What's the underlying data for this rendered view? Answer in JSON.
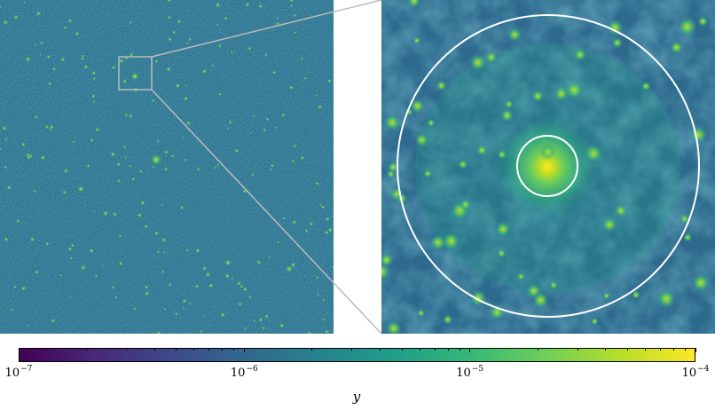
{
  "colormap": {
    "name": "viridis",
    "stops": [
      "#440154",
      "#482878",
      "#3e4989",
      "#31688e",
      "#26828e",
      "#1f9e89",
      "#35b779",
      "#6ece58",
      "#b5de2b",
      "#fde725"
    ]
  },
  "colorbar": {
    "scale": "log",
    "range": [
      1e-07,
      0.0001
    ],
    "ticks": [
      {
        "base": "10",
        "exp": "−7"
      },
      {
        "base": "10",
        "exp": "−6"
      },
      {
        "base": "10",
        "exp": "−5"
      },
      {
        "base": "10",
        "exp": "−4"
      }
    ],
    "axis_label": "y"
  },
  "inset": {
    "frame_color": "#bbbbbb",
    "connector_color": "#bbbbbb",
    "circle_color": "#ffffff"
  }
}
